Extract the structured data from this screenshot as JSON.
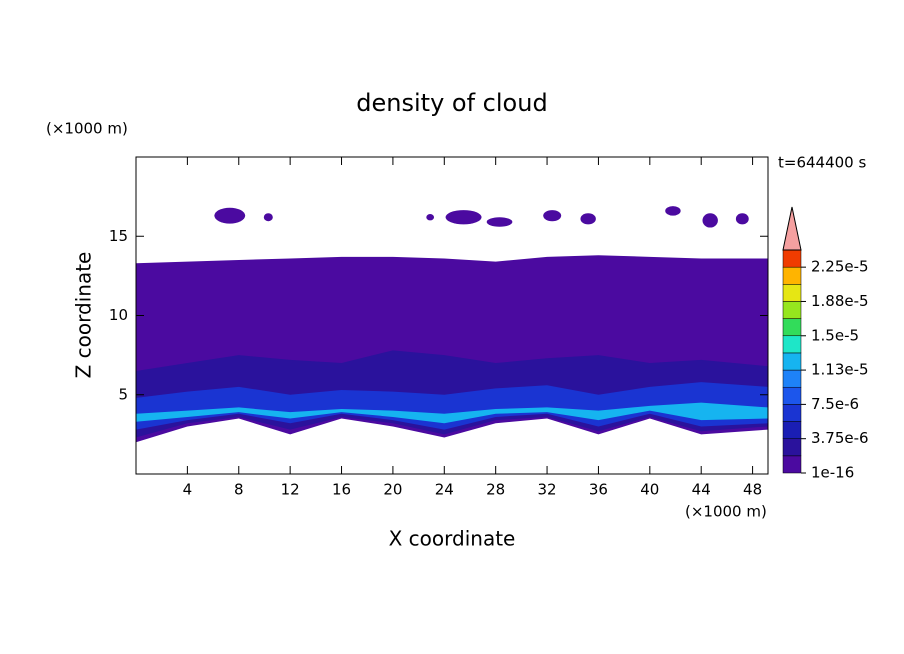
{
  "chart_data": {
    "type": "contour",
    "title": "density of cloud",
    "x_label": "X coordinate",
    "y_label": "Z coordinate",
    "x_unit": "(×1000 m)",
    "y_unit": "(×1000 m)",
    "time_label": "t=644400 s",
    "xlim": [
      0,
      49.2
    ],
    "ylim": [
      0,
      20
    ],
    "xticks": [
      4,
      8,
      12,
      16,
      20,
      24,
      28,
      32,
      36,
      40,
      44,
      48
    ],
    "yticks": [
      5,
      10,
      15
    ],
    "levels": [
      1e-16,
      1.875e-06,
      3.75e-06,
      5.625e-06,
      7.5e-06,
      9.375e-06,
      1.125e-05,
      1.3125e-05,
      1.5e-05,
      1.6875e-05,
      1.875e-05,
      2.0625e-05,
      2.25e-05
    ],
    "colors": [
      "#4b0aa0",
      "#2a129c",
      "#1a1eb4",
      "#1a34d2",
      "#1c56ec",
      "#1e82f8",
      "#16b4f0",
      "#1ee6c8",
      "#32dc5a",
      "#96e61e",
      "#e6e614",
      "#ffb400",
      "#f03c00"
    ],
    "extend_color": "#f5a0a0",
    "cbar_lim": [
      1e-16,
      2.4375e-05
    ],
    "cbar_ticks": [
      {
        "value": 1e-16,
        "label": "1e-16"
      },
      {
        "value": 3.75e-06,
        "label": "3.75e-6"
      },
      {
        "value": 7.5e-06,
        "label": "7.5e-6"
      },
      {
        "value": 1.125e-05,
        "label": "1.13e-5"
      },
      {
        "value": 1.5e-05,
        "label": "1.5e-5"
      },
      {
        "value": 1.875e-05,
        "label": "1.88e-5"
      },
      {
        "value": 2.25e-05,
        "label": "2.25e-5"
      }
    ],
    "field_x": [
      0,
      4,
      8,
      12,
      16,
      20,
      24,
      28,
      32,
      36,
      40,
      44,
      49.2
    ],
    "field": [
      {
        "level": 0,
        "upper": [
          13.3,
          13.4,
          13.5,
          13.6,
          13.7,
          13.7,
          13.6,
          13.4,
          13.7,
          13.8,
          13.7,
          13.6,
          13.6
        ],
        "lower": [
          2,
          3,
          3.5,
          2.5,
          3.5,
          3,
          2.3,
          3.2,
          3.5,
          2.5,
          3.5,
          2.5,
          2.8
        ]
      },
      {
        "level": 1,
        "upper": [
          6.5,
          7,
          7.5,
          7.2,
          7,
          7.8,
          7.5,
          7,
          7.3,
          7.5,
          7,
          7.2,
          6.8
        ],
        "lower": [
          2.3,
          3.2,
          3.6,
          2.8,
          3.6,
          3.2,
          2.5,
          3.4,
          3.6,
          2.7,
          3.6,
          2.7,
          3
        ]
      },
      {
        "level": 3,
        "upper": [
          4.8,
          5.2,
          5.5,
          5,
          5.3,
          5.2,
          5,
          5.4,
          5.6,
          5,
          5.5,
          5.8,
          5.5
        ],
        "lower": [
          2.8,
          3.4,
          3.8,
          3.2,
          3.8,
          3.4,
          2.8,
          3.6,
          3.8,
          3,
          3.8,
          3,
          3.2
        ]
      },
      {
        "level": 6,
        "upper": [
          3.8,
          4,
          4.2,
          3.9,
          4.1,
          4,
          3.8,
          4.1,
          4.2,
          4,
          4.3,
          4.5,
          4.2
        ],
        "lower": [
          3.3,
          3.6,
          3.9,
          3.5,
          3.9,
          3.6,
          3.2,
          3.8,
          3.9,
          3.4,
          4,
          3.4,
          3.5
        ]
      }
    ],
    "blobs": [
      {
        "level": 0,
        "x": 7.3,
        "z": 16.3,
        "width": 2.4,
        "height": 1
      },
      {
        "level": 0,
        "x": 10.3,
        "z": 16.2,
        "width": 0.7,
        "height": 0.5
      },
      {
        "level": 0,
        "x": 22.9,
        "z": 16.2,
        "width": 0.6,
        "height": 0.4
      },
      {
        "level": 0,
        "x": 25.5,
        "z": 16.2,
        "width": 2.8,
        "height": 0.9
      },
      {
        "level": 0,
        "x": 28.3,
        "z": 15.9,
        "width": 2,
        "height": 0.6
      },
      {
        "level": 0,
        "x": 32.4,
        "z": 16.3,
        "width": 1.4,
        "height": 0.7
      },
      {
        "level": 0,
        "x": 35.2,
        "z": 16.1,
        "width": 1.2,
        "height": 0.7
      },
      {
        "level": 0,
        "x": 41.8,
        "z": 16.6,
        "width": 1.2,
        "height": 0.6
      },
      {
        "level": 0,
        "x": 44.7,
        "z": 16.0,
        "width": 1.2,
        "height": 0.9
      },
      {
        "level": 0,
        "x": 47.2,
        "z": 16.1,
        "width": 1,
        "height": 0.7
      }
    ]
  }
}
